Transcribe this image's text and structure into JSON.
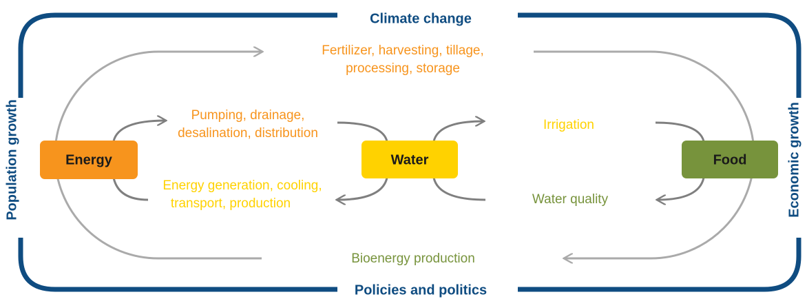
{
  "frame": {
    "top": "Climate change",
    "bottom": "Policies and politics",
    "left": "Population growth",
    "right": "Economic growth"
  },
  "nodes": [
    {
      "label": "Energy"
    },
    {
      "label": "Water"
    },
    {
      "label": "Food"
    }
  ],
  "flows": [
    {
      "lines": [
        "Fertilizer, harvesting, tillage,",
        "processing, storage"
      ]
    },
    {
      "lines": [
        "Pumping, drainage,",
        "desalination, distribution"
      ]
    },
    {
      "lines": [
        "Energy generation, cooling,",
        "transport, production"
      ]
    },
    {
      "lines": [
        "Irrigation"
      ]
    },
    {
      "lines": [
        "Water quality"
      ]
    },
    {
      "lines": [
        "Bioenergy production"
      ]
    }
  ]
}
